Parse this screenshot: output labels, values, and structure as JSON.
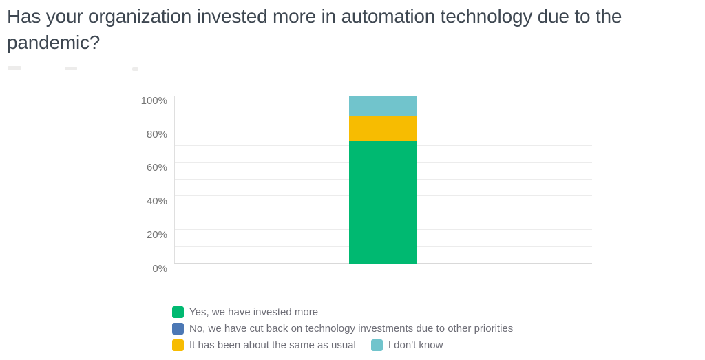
{
  "title": {
    "text": "Has your organization invested more in automation technology due to the pandemic?",
    "line1": "Has your organization invested more in automation technology due to the",
    "line2": "pandemic?"
  },
  "chart_data": {
    "type": "bar",
    "stacked": true,
    "title": "Has your organization invested more in automation technology due to the pandemic?",
    "categories": [
      ""
    ],
    "series": [
      {
        "name": "Yes, we have invested more",
        "values": [
          73
        ],
        "color": "#00b971"
      },
      {
        "name": "No, we have cut back on technology investments due to other priorities",
        "values": [
          0
        ],
        "color": "#4c78b5"
      },
      {
        "name": "It has been about the same as usual",
        "values": [
          15
        ],
        "color": "#f7bc01"
      },
      {
        "name": "I don't know",
        "values": [
          12
        ],
        "color": "#71c4cc"
      }
    ],
    "xlabel": "",
    "ylabel": "",
    "ylim": [
      0,
      100
    ],
    "ytick_labels": [
      "0%",
      "20%",
      "40%",
      "60%",
      "80%",
      "100%"
    ],
    "gridlines": "horizontal every 10%",
    "legend_position": "bottom-left",
    "colors": {
      "title_text": "#3e4751",
      "tick_text": "#757575",
      "legend_text": "#6d6d76",
      "gridline": "#ececec",
      "axis_line": "#d9d9d9"
    }
  }
}
